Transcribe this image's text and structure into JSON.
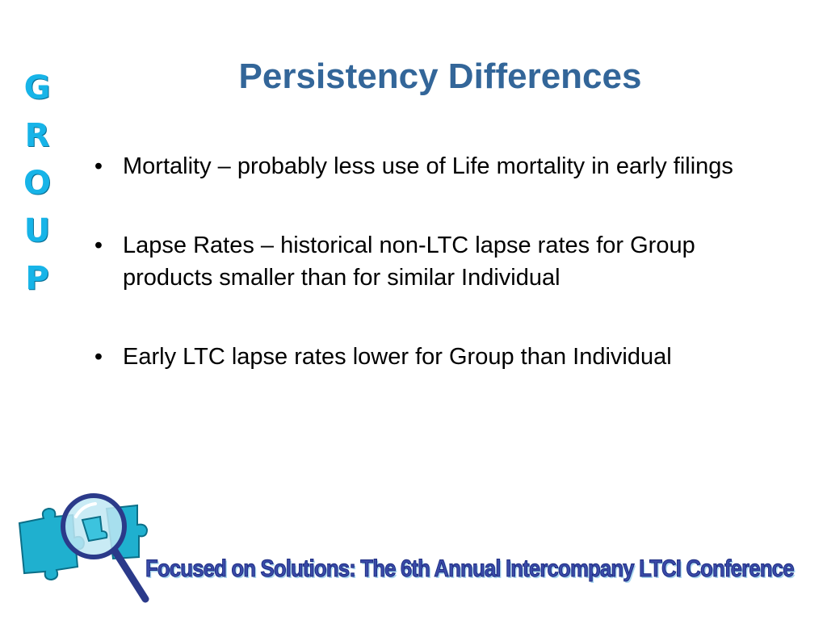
{
  "side_word": {
    "letters": [
      "G",
      "R",
      "O",
      "U",
      "P"
    ],
    "color": "#17b4e8"
  },
  "title": "Persistency Differences",
  "title_color": "#336699",
  "bullet_symbol": "•",
  "bullets": [
    "Mortality – probably less use of Life mortality in early filings",
    "Lapse Rates – historical non-LTC lapse rates for Group products smaller than for similar Individual",
    "Early LTC lapse rates lower for Group than Individual"
  ],
  "footer": {
    "logo_icon": "magnifier-puzzle-icon",
    "banner_text": "Focused on Solutions:  The 6th Annual Intercompany LTCI Conference"
  }
}
